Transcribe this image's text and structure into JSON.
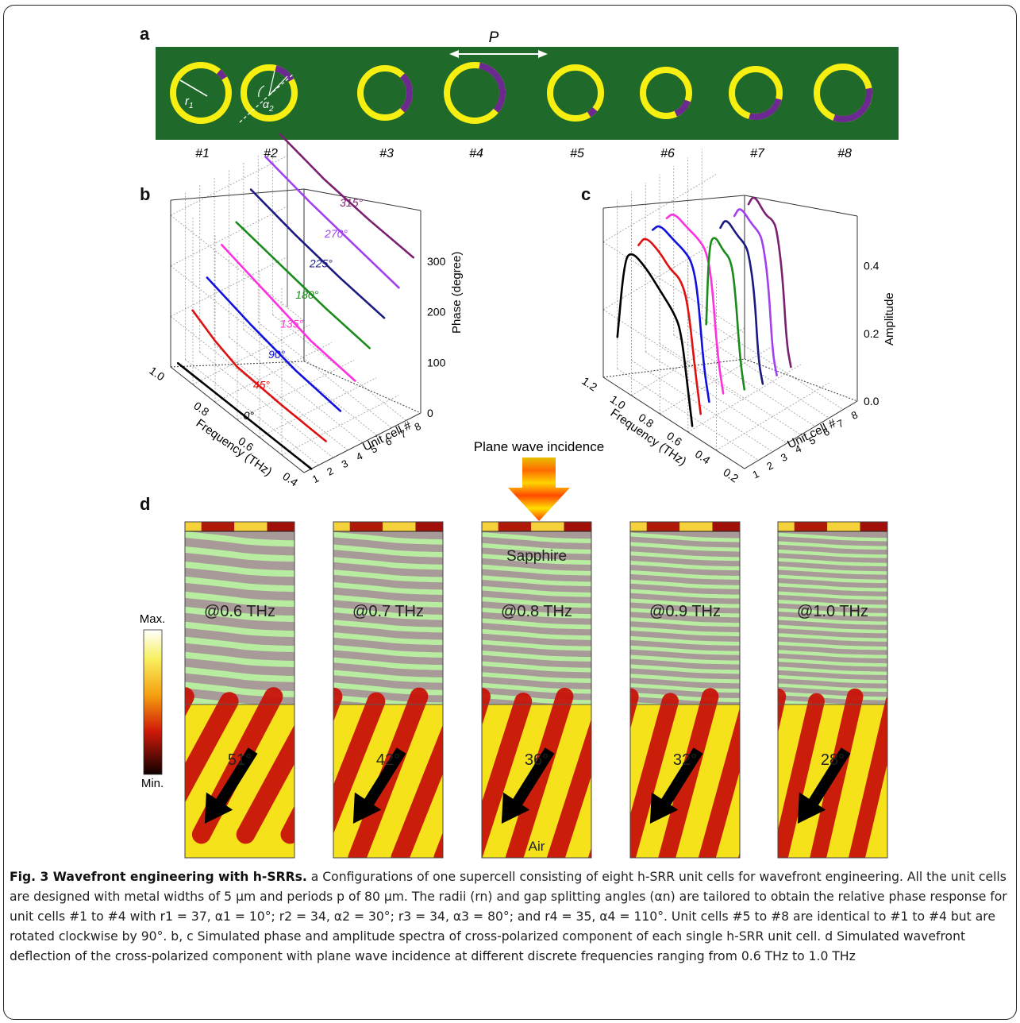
{
  "panel_labels": {
    "a": "a",
    "b": "b",
    "c": "c",
    "d": "d"
  },
  "panel_a": {
    "period_label": "P",
    "radius_label": "r",
    "radius_sub": "1",
    "angle_label": "α",
    "angle_sub": "2",
    "cells": [
      "#1",
      "#2",
      "#3",
      "#4",
      "#5",
      "#6",
      "#7",
      "#8"
    ],
    "colors": {
      "background": "#1f6a2a",
      "ring": "#f7ee12",
      "gap": "#6a2a8f"
    }
  },
  "panel_b": {
    "title": "",
    "frequency_axis": {
      "label": "Frequency (THz)",
      "ticks": [
        "1.0",
        "0.8",
        "0.6",
        "0.4"
      ]
    },
    "cell_axis": {
      "label": "Unit cell #",
      "ticks": [
        "1",
        "2",
        "3",
        "4",
        "5",
        "6",
        "7",
        "8"
      ]
    },
    "phase_axis": {
      "label": "Phase (degree)",
      "ticks": [
        "0",
        "100",
        "200",
        "300"
      ]
    },
    "curve_labels": [
      "0°",
      "45°",
      "90°",
      "135°",
      "180°",
      "225°",
      "270°",
      "315°"
    ]
  },
  "panel_c": {
    "frequency_axis": {
      "label": "Frequency (THz)",
      "ticks": [
        "1.2",
        "1.0",
        "0.8",
        "0.6",
        "0.4",
        "0.2"
      ]
    },
    "cell_axis": {
      "label": "Unit cell #",
      "ticks": [
        "1",
        "2",
        "3",
        "4",
        "5",
        "6",
        "7",
        "8"
      ]
    },
    "amplitude_axis": {
      "label": "Amplitude",
      "ticks": [
        "0.0",
        "0.2",
        "0.4"
      ]
    }
  },
  "chart_data": [
    {
      "type": "line",
      "panel": "b",
      "xlabel": "Frequency (THz)",
      "ylabel": "Phase (degree)",
      "zlabel": "Unit cell #",
      "xlim": [
        0.4,
        1.0
      ],
      "ylim": [
        0,
        330
      ],
      "series": [
        {
          "name": "0°",
          "cell": 1,
          "color": "#000000",
          "x": [
            0.4,
            0.6,
            0.8,
            1.0
          ],
          "y": [
            0,
            0,
            0,
            0
          ]
        },
        {
          "name": "45°",
          "cell": 2,
          "color": "#e01010",
          "x": [
            0.4,
            0.6,
            0.8,
            0.9,
            1.0
          ],
          "y": [
            40,
            42,
            48,
            65,
            90
          ]
        },
        {
          "name": "90°",
          "cell": 3,
          "color": "#1010e0",
          "x": [
            0.4,
            0.6,
            0.8,
            1.0
          ],
          "y": [
            85,
            95,
            115,
            140
          ]
        },
        {
          "name": "135°",
          "cell": 4,
          "color": "#ff30e0",
          "x": [
            0.4,
            0.6,
            0.8,
            1.0
          ],
          "y": [
            130,
            140,
            165,
            190
          ]
        },
        {
          "name": "180°",
          "cell": 5,
          "color": "#1a8a1a",
          "x": [
            0.4,
            0.6,
            0.8,
            1.0
          ],
          "y": [
            180,
            190,
            205,
            220
          ]
        },
        {
          "name": "225°",
          "cell": 6,
          "color": "#1a1a80",
          "x": [
            0.4,
            0.6,
            0.8,
            1.0
          ],
          "y": [
            225,
            235,
            250,
            270
          ]
        },
        {
          "name": "270°",
          "cell": 7,
          "color": "#a040f0",
          "x": [
            0.4,
            0.6,
            0.8,
            1.0
          ],
          "y": [
            270,
            285,
            300,
            320
          ]
        },
        {
          "name": "315°",
          "cell": 8,
          "color": "#7a2070",
          "x": [
            0.4,
            0.6,
            0.8,
            1.0
          ],
          "y": [
            315,
            320,
            330,
            350
          ]
        }
      ]
    },
    {
      "type": "line",
      "panel": "c",
      "xlabel": "Frequency (THz)",
      "ylabel": "Amplitude",
      "zlabel": "Unit cell #",
      "xlim": [
        0.2,
        1.2
      ],
      "ylim": [
        0,
        0.5
      ],
      "series": [
        {
          "cell": 1,
          "color": "#000000"
        },
        {
          "cell": 2,
          "color": "#e01010"
        },
        {
          "cell": 3,
          "color": "#1010e0"
        },
        {
          "cell": 4,
          "color": "#ff30e0"
        },
        {
          "cell": 5,
          "color": "#1a8a1a"
        },
        {
          "cell": 6,
          "color": "#1a1a80"
        },
        {
          "cell": 7,
          "color": "#a040f0"
        },
        {
          "cell": 8,
          "color": "#7a2070"
        }
      ]
    }
  ],
  "panel_d": {
    "incidence_label": "Plane wave incidence",
    "colorbar": {
      "max": "Max.",
      "min": "Min."
    },
    "substrate_label": "Sapphire",
    "air_label": "Air",
    "frames": [
      {
        "freq": "@0.6 THz",
        "angle": "51°"
      },
      {
        "freq": "@0.7 THz",
        "angle": "42°"
      },
      {
        "freq": "@0.8 THz",
        "angle": "36°"
      },
      {
        "freq": "@0.9 THz",
        "angle": "32°"
      },
      {
        "freq": "@1.0 THz",
        "angle": "28°"
      }
    ]
  },
  "caption": {
    "title": "Fig. 3 Wavefront engineering with h-SRRs.",
    "text": "a Configurations of one supercell consisting of eight h-SRR unit cells for wavefront engineering. All the unit cells are designed with metal widths of 5 μm and periods p of 80 μm. The radii (rn) and gap splitting angles (αn) are tailored to obtain the relative phase response for unit cells #1 to #4 with r1 = 37, α1 = 10°; r2 = 34, α2 = 30°; r3 = 34, α3 = 80°; and r4 = 35, α4 = 110°. Unit cells #5 to #8 are identical to #1 to #4 but are rotated clockwise by 90°. b, c Simulated phase and amplitude spectra of cross-polarized component of each single h-SRR unit cell. d Simulated wavefront deflection of the cross-polarized component with plane wave incidence at different discrete frequencies ranging from 0.6 THz to 1.0 THz"
  }
}
